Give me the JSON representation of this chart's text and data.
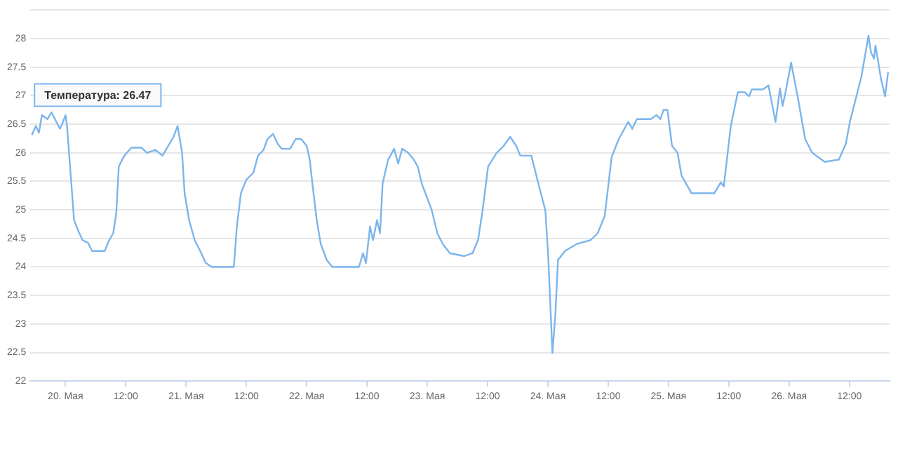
{
  "chart_data": {
    "type": "line",
    "x": [
      "--05-19T17:18",
      "--05-19T18:06",
      "--05-19T18:42",
      "--05-19T19:18",
      "--05-19T20:24",
      "--05-19T21:12",
      "--05-19T22:18",
      "--05-19T22:54",
      "--05-19T23:24",
      "--05-20T00:00",
      "--05-20T00:18",
      "--05-20T01:06",
      "--05-20T01:42",
      "--05-20T02:30",
      "--05-20T03:24",
      "--05-20T04:30",
      "--05-20T05:18",
      "--05-20T07:48",
      "--05-20T08:42",
      "--05-20T09:30",
      "--05-20T10:06",
      "--05-20T10:36",
      "--05-20T11:42",
      "--05-20T13:06",
      "--05-20T15:06",
      "--05-20T16:12",
      "--05-20T17:54",
      "--05-20T19:18",
      "--05-20T20:06",
      "--05-20T21:30",
      "--05-20T22:18",
      "--05-20T23:12",
      "--05-20T23:42",
      "--05-21T00:36",
      "--05-21T01:42",
      "--05-21T02:48",
      "--05-21T03:54",
      "--05-21T05:06",
      "--05-21T09:30",
      "--05-21T10:06",
      "--05-21T10:54",
      "--05-21T12:00",
      "--05-21T13:24",
      "--05-21T14:18",
      "--05-21T15:24",
      "--05-21T16:12",
      "--05-21T17:18",
      "--05-21T18:12",
      "--05-21T19:00",
      "--05-21T20:42",
      "--05-21T21:48",
      "--05-21T22:54",
      "--05-22T00:00",
      "--05-22T00:36",
      "--05-22T01:12",
      "--05-22T02:00",
      "--05-22T02:48",
      "--05-22T04:00",
      "--05-22T05:06",
      "--05-22T10:24",
      "--05-22T11:12",
      "--05-22T11:48",
      "--05-22T12:36",
      "--05-22T13:12",
      "--05-22T14:00",
      "--05-22T14:36",
      "--05-22T15:06",
      "--05-22T16:12",
      "--05-22T17:24",
      "--05-22T18:12",
      "--05-22T19:00",
      "--05-22T20:12",
      "--05-22T21:18",
      "--05-22T22:06",
      "--05-22T22:54",
      "--05-23T00:06",
      "--05-23T00:54",
      "--05-23T02:00",
      "--05-23T03:06",
      "--05-23T04:30",
      "--05-23T07:18",
      "--05-23T09:00",
      "--05-23T10:06",
      "--05-23T11:00",
      "--05-23T12:06",
      "--05-23T13:48",
      "--05-23T15:12",
      "--05-23T16:30",
      "--05-23T17:42",
      "--05-23T18:30",
      "--05-23T20:42",
      "--05-23T22:06",
      "--05-23T23:30",
      "--05-24T00:06",
      "--05-24T00:54",
      "--05-24T01:30",
      "--05-24T02:00",
      "--05-24T03:24",
      "--05-24T05:42",
      "--05-24T08:30",
      "--05-24T09:54",
      "--05-24T11:18",
      "--05-24T12:42",
      "--05-24T14:06",
      "--05-24T16:00",
      "--05-24T16:48",
      "--05-24T17:42",
      "--05-24T20:30",
      "--05-24T21:36",
      "--05-24T22:24",
      "--05-24T23:00",
      "--05-24T23:48",
      "--05-25T00:42",
      "--05-25T01:48",
      "--05-25T02:36",
      "--05-25T04:36",
      "--05-25T09:06",
      "--05-25T10:24",
      "--05-25T11:00",
      "--05-25T12:24",
      "--05-25T13:48",
      "--05-25T15:12",
      "--05-25T16:00",
      "--05-25T16:36",
      "--05-25T18:48",
      "--05-25T19:54",
      "--05-25T21:18",
      "--05-25T22:12",
      "--05-25T22:42",
      "--05-25T23:18",
      "--05-26T00:24",
      "--05-26T01:48",
      "--05-26T03:12",
      "--05-26T04:36",
      "--05-26T07:06",
      "--05-26T09:54",
      "--05-26T11:18",
      "--05-26T12:06",
      "--05-26T14:24",
      "--05-26T15:48",
      "--05-26T16:18",
      "--05-26T16:54",
      "--05-26T17:12",
      "--05-26T18:18",
      "--05-26T19:06",
      "--05-26T19:42"
    ],
    "series": [
      {
        "color": "#7cb5ec",
        "values": [
          26.31,
          26.47,
          26.35,
          26.66,
          26.59,
          26.71,
          26.52,
          26.42,
          26.52,
          26.66,
          26.47,
          25.53,
          24.82,
          24.64,
          24.47,
          24.42,
          24.28,
          24.28,
          24.47,
          24.59,
          24.94,
          25.76,
          25.95,
          26.09,
          26.09,
          26.0,
          26.05,
          25.95,
          26.07,
          26.28,
          26.47,
          26.0,
          25.29,
          24.82,
          24.47,
          24.28,
          24.07,
          24.0,
          24.0,
          24.71,
          25.29,
          25.53,
          25.65,
          25.95,
          26.05,
          26.24,
          26.33,
          26.16,
          26.07,
          26.07,
          26.24,
          26.24,
          26.12,
          25.88,
          25.41,
          24.82,
          24.4,
          24.12,
          24.0,
          24.0,
          24.24,
          24.07,
          24.71,
          24.47,
          24.82,
          24.59,
          25.46,
          25.88,
          26.07,
          25.81,
          26.07,
          26.0,
          25.88,
          25.76,
          25.46,
          25.18,
          24.99,
          24.59,
          24.4,
          24.24,
          24.19,
          24.24,
          24.47,
          24.99,
          25.76,
          26.0,
          26.12,
          26.28,
          26.12,
          25.95,
          25.95,
          25.46,
          24.99,
          24.12,
          22.49,
          23.18,
          24.12,
          24.28,
          24.4,
          24.47,
          24.59,
          24.89,
          25.93,
          26.24,
          26.54,
          26.42,
          26.59,
          26.59,
          26.66,
          26.59,
          26.75,
          26.75,
          26.12,
          26.0,
          25.6,
          25.29,
          25.29,
          25.48,
          25.41,
          26.47,
          27.06,
          27.06,
          26.99,
          27.11,
          27.11,
          27.18,
          26.54,
          27.13,
          26.82,
          27.06,
          27.58,
          26.94,
          26.24,
          26.0,
          25.84,
          25.88,
          26.16,
          26.54,
          27.34,
          28.05,
          27.76,
          27.65,
          27.88,
          27.29,
          26.99,
          27.41
        ]
      }
    ],
    "xlim": [
      "--05-19T17:00",
      "--05-26T20:00"
    ],
    "xticks": [
      {
        "value": "--05-20",
        "label": "20. Мая"
      },
      {
        "value": "--05-20T12:00",
        "label": "12:00"
      },
      {
        "value": "--05-21",
        "label": "21. Мая"
      },
      {
        "value": "--05-21T12:00",
        "label": "12:00"
      },
      {
        "value": "--05-22",
        "label": "22. Мая"
      },
      {
        "value": "--05-22T12:00",
        "label": "12:00"
      },
      {
        "value": "--05-23",
        "label": "23. Мая"
      },
      {
        "value": "--05-23T12:00",
        "label": "12:00"
      },
      {
        "value": "--05-24",
        "label": "24. Мая"
      },
      {
        "value": "--05-24T12:00",
        "label": "12:00"
      },
      {
        "value": "--05-25",
        "label": "25. Мая"
      },
      {
        "value": "--05-25T12:00",
        "label": "12:00"
      },
      {
        "value": "--05-26",
        "label": "26. Мая"
      },
      {
        "value": "--05-26T12:00",
        "label": "12:00"
      }
    ],
    "ylim": [
      22,
      28.5
    ],
    "yticks": [
      22,
      22.5,
      23,
      23.5,
      24,
      24.5,
      25,
      25.5,
      26,
      26.5,
      27,
      27.5,
      28,
      {
        "value": 28.5,
        "label": null
      }
    ],
    "grid": "y",
    "marker": "none",
    "annotations": [
      {
        "text": "Температура: 26.47",
        "x": "--05-19T18:06",
        "y": 26.47
      }
    ]
  }
}
